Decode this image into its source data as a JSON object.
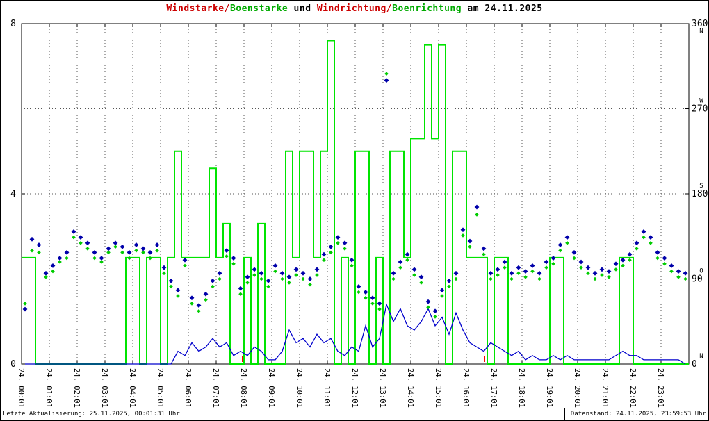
{
  "title": {
    "segments": [
      {
        "text": "Windstarke/",
        "color": "#cc0000"
      },
      {
        "text": "Boenstarke",
        "color": "#00aa00"
      },
      {
        "text": " und ",
        "color": "#000000"
      },
      {
        "text": "Windrichtung/",
        "color": "#cc0000"
      },
      {
        "text": "Boenrichtung",
        "color": "#00aa00"
      },
      {
        "text": " am 24.11.2025",
        "color": "#000000"
      }
    ]
  },
  "footer": {
    "left": "Letzte Aktualisierung: 25.11.2025, 00:01:31 Uhr",
    "right": "Datenstand: 24.11.2025, 23:59:53 Uhr"
  },
  "chart_data": {
    "type": "line",
    "title": "Windstarke/Boenstarke und Windrichtung/Boenrichtung am 24.11.2025",
    "grid": true,
    "x_axis": {
      "range_hours": [
        0,
        24
      ],
      "tick_labels": [
        "24. 00:01",
        "24. 01:01",
        "24. 02:01",
        "24. 03:01",
        "24. 04:01",
        "24. 05:01",
        "24. 06:01",
        "24. 07:01",
        "24. 08:01",
        "24. 09:01",
        "24. 10:01",
        "24. 11:01",
        "24. 12:01",
        "24. 13:01",
        "24. 14:01",
        "24. 15:01",
        "24. 16:01",
        "24. 17:01",
        "24. 18:01",
        "24. 19:01",
        "24. 20:01",
        "24. 21:01",
        "24. 22:01",
        "24. 23:01"
      ]
    },
    "y_left": {
      "min": 0,
      "max": 8,
      "ticks": [
        0,
        4,
        8
      ],
      "gridlines_at": [
        2,
        4,
        6
      ]
    },
    "y_right": {
      "min": 0,
      "max": 360,
      "ticks": [
        {
          "value": 0,
          "label": "0",
          "compass": "N"
        },
        {
          "value": 90,
          "label": "90",
          "compass": "O"
        },
        {
          "value": 180,
          "label": "180",
          "compass": "S"
        },
        {
          "value": 270,
          "label": "270",
          "compass": "W"
        },
        {
          "value": 360,
          "label": "360",
          "compass": "N"
        }
      ]
    },
    "series": [
      {
        "name": "Boenstarke",
        "type": "step",
        "axis": "left",
        "color": "#00e400",
        "step_minutes": 15,
        "values": [
          2.5,
          2.5,
          0,
          0,
          0,
          0,
          0,
          0,
          0,
          0,
          0,
          0,
          0,
          0,
          0,
          2.5,
          2.5,
          0,
          2.5,
          2.5,
          0,
          2.5,
          5,
          2.5,
          2.5,
          2.5,
          2.5,
          4.6,
          2.5,
          3.3,
          0,
          0,
          2.5,
          0,
          3.3,
          0,
          0,
          0,
          5,
          2.5,
          5,
          5,
          2.5,
          5,
          7.6,
          0,
          2.5,
          0,
          5,
          5,
          0,
          2.5,
          0,
          5,
          5,
          2.5,
          5.3,
          5.3,
          7.5,
          5.3,
          7.5,
          0,
          5,
          5,
          2.5,
          2.5,
          2.5,
          0,
          2.5,
          2.5,
          0,
          0,
          0,
          0,
          0,
          0,
          2.5,
          2.5,
          0,
          0,
          0,
          0,
          0,
          0,
          0,
          0,
          2.5,
          2.5,
          0,
          0,
          0,
          0,
          0,
          0,
          0,
          0
        ]
      },
      {
        "name": "Windstarke",
        "type": "line",
        "axis": "left",
        "color": "#0000cc",
        "step_minutes": 15,
        "values": [
          0,
          0,
          0,
          0,
          0,
          0,
          0,
          0,
          0,
          0,
          0,
          0,
          0,
          0,
          0,
          0,
          0,
          0,
          0,
          0,
          0,
          0,
          0.3,
          0.2,
          0.5,
          0.3,
          0.4,
          0.6,
          0.4,
          0.5,
          0.2,
          0.3,
          0.2,
          0.4,
          0.3,
          0.1,
          0.1,
          0.3,
          0.8,
          0.5,
          0.6,
          0.4,
          0.7,
          0.5,
          0.6,
          0.3,
          0.2,
          0.4,
          0.3,
          0.9,
          0.4,
          0.6,
          1.4,
          1.0,
          1.3,
          0.9,
          0.8,
          1.0,
          1.3,
          0.9,
          1.1,
          0.7,
          1.2,
          0.8,
          0.5,
          0.4,
          0.3,
          0.5,
          0.4,
          0.3,
          0.2,
          0.3,
          0.1,
          0.2,
          0.1,
          0.1,
          0.2,
          0.1,
          0.2,
          0.1,
          0.1,
          0.1,
          0.1,
          0.1,
          0.1,
          0.2,
          0.3,
          0.2,
          0.2,
          0.1,
          0.1,
          0.1,
          0.1,
          0.1,
          0.1,
          0.0
        ]
      },
      {
        "name": "Windrichtung",
        "type": "scatter",
        "marker": "diamond",
        "axis": "right",
        "color": "#0000aa",
        "step_minutes": 15,
        "values": [
          58,
          132,
          126,
          96,
          104,
          112,
          118,
          140,
          134,
          128,
          118,
          112,
          122,
          128,
          124,
          118,
          126,
          122,
          118,
          126,
          102,
          88,
          78,
          110,
          70,
          62,
          74,
          88,
          96,
          120,
          112,
          80,
          92,
          100,
          96,
          88,
          104,
          96,
          92,
          100,
          96,
          90,
          100,
          116,
          124,
          134,
          128,
          110,
          82,
          76,
          70,
          64,
          300,
          96,
          108,
          116,
          100,
          92,
          66,
          56,
          78,
          88,
          96,
          142,
          130,
          166,
          122,
          96,
          100,
          108,
          96,
          102,
          98,
          104,
          96,
          108,
          112,
          126,
          134,
          118,
          108,
          102,
          96,
          100,
          98,
          106,
          110,
          116,
          128,
          140,
          134,
          118,
          112,
          104,
          98,
          96
        ]
      },
      {
        "name": "Boenrichtung",
        "type": "scatter",
        "marker": "diamond",
        "axis": "right",
        "color": "#00cc00",
        "step_minutes": 15,
        "values": [
          64,
          120,
          118,
          92,
          98,
          108,
          112,
          134,
          128,
          122,
          112,
          108,
          118,
          124,
          118,
          112,
          120,
          118,
          112,
          120,
          96,
          82,
          72,
          104,
          64,
          56,
          68,
          82,
          90,
          114,
          106,
          74,
          86,
          94,
          90,
          82,
          98,
          90,
          86,
          94,
          90,
          84,
          94,
          110,
          118,
          128,
          122,
          104,
          76,
          70,
          64,
          58,
          307,
          90,
          102,
          110,
          94,
          86,
          60,
          50,
          72,
          82,
          90,
          136,
          124,
          158,
          116,
          90,
          94,
          102,
          90,
          96,
          92,
          98,
          90,
          102,
          106,
          120,
          128,
          112,
          102,
          96,
          90,
          94,
          92,
          100,
          104,
          110,
          122,
          134,
          128,
          112,
          106,
          98,
          92,
          90
        ]
      }
    ],
    "event_markers": {
      "color": "#ff0000",
      "x_hours": [
        7.95,
        16.65
      ]
    }
  }
}
